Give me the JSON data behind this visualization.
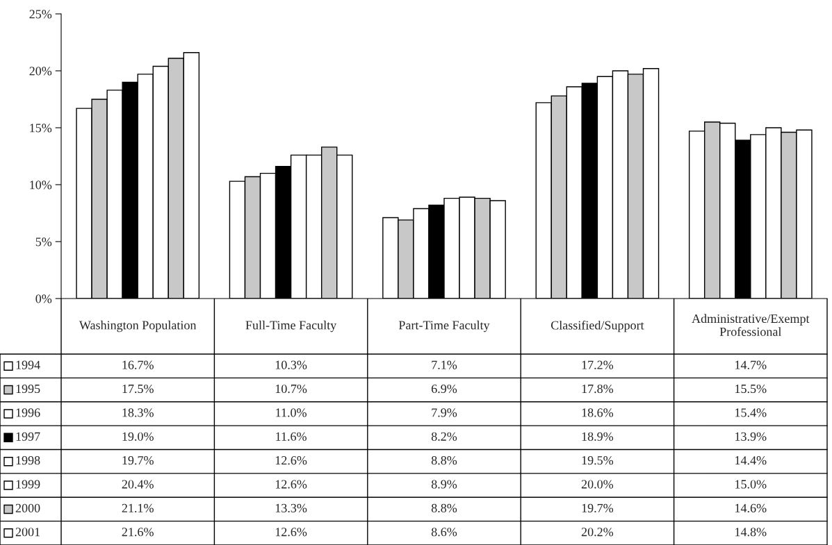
{
  "chart_data": {
    "type": "bar",
    "categories": [
      "Washington Population",
      "Full-Time Faculty",
      "Part-Time Faculty",
      "Classified/Support",
      "Administrative/Exempt Professional"
    ],
    "series": [
      {
        "name": "1994",
        "color": "#ffffff",
        "values": [
          16.7,
          10.3,
          7.1,
          17.2,
          14.7
        ],
        "value_labels": [
          "16.7%",
          "10.3%",
          "7.1%",
          "17.2%",
          "14.7%"
        ]
      },
      {
        "name": "1995",
        "color": "#c8c8c8",
        "values": [
          17.5,
          10.7,
          6.9,
          17.8,
          15.5
        ],
        "value_labels": [
          "17.5%",
          "10.7%",
          "6.9%",
          "17.8%",
          "15.5%"
        ]
      },
      {
        "name": "1996",
        "color": "#ffffff",
        "values": [
          18.3,
          11.0,
          7.9,
          18.6,
          15.4
        ],
        "value_labels": [
          "18.3%",
          "11.0%",
          "7.9%",
          "18.6%",
          "15.4%"
        ]
      },
      {
        "name": "1997",
        "color": "#000000",
        "values": [
          19.0,
          11.6,
          8.2,
          18.9,
          13.9
        ],
        "value_labels": [
          "19.0%",
          "11.6%",
          "8.2%",
          "18.9%",
          "13.9%"
        ]
      },
      {
        "name": "1998",
        "color": "#ffffff",
        "values": [
          19.7,
          12.6,
          8.8,
          19.5,
          14.4
        ],
        "value_labels": [
          "19.7%",
          "12.6%",
          "8.8%",
          "19.5%",
          "14.4%"
        ]
      },
      {
        "name": "1999",
        "color": "#ffffff",
        "values": [
          20.4,
          12.6,
          8.9,
          20.0,
          15.0
        ],
        "value_labels": [
          "20.4%",
          "12.6%",
          "8.9%",
          "20.0%",
          "15.0%"
        ]
      },
      {
        "name": "2000",
        "color": "#c8c8c8",
        "values": [
          21.1,
          13.3,
          8.8,
          19.7,
          14.6
        ],
        "value_labels": [
          "21.1%",
          "13.3%",
          "8.8%",
          "19.7%",
          "14.6%"
        ]
      },
      {
        "name": "2001",
        "color": "#ffffff",
        "values": [
          21.6,
          12.6,
          8.6,
          20.2,
          14.8
        ],
        "value_labels": [
          "21.6%",
          "12.6%",
          "8.6%",
          "20.2%",
          "14.8%"
        ]
      }
    ],
    "ylim": [
      0,
      25
    ],
    "yticks": [
      {
        "value": 0,
        "label": "0%"
      },
      {
        "value": 5,
        "label": "5%"
      },
      {
        "value": 10,
        "label": "10%"
      },
      {
        "value": 15,
        "label": "15%"
      },
      {
        "value": 20,
        "label": "20%"
      },
      {
        "value": 25,
        "label": "25%"
      }
    ],
    "legend": "bottom",
    "grid": false
  }
}
